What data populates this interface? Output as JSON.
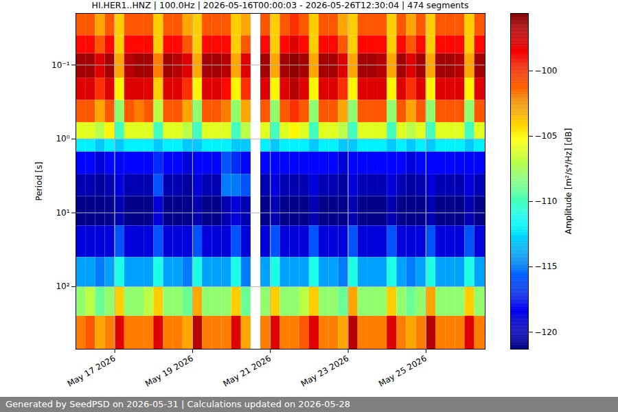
{
  "chart_data": {
    "type": "heatmap",
    "title": "HI.HER1..HNZ | 100.0Hz | 2026-05-16T00:00:03 - 2026-05-26T12:30:04 | 474 segments",
    "footer": "Generated by SeedPSD on 2026-05-31 | Calculations updated on 2026-05-28",
    "ylabel": "Period [s]",
    "log": "y",
    "grid": true,
    "xlim": [
      "2026-05-16T00:00",
      "2026-05-26T12:30"
    ],
    "xticks": [
      {
        "value": "2026-05-17",
        "label": "May 17 2026"
      },
      {
        "value": "2026-05-19",
        "label": "May 19 2026"
      },
      {
        "value": "2026-05-21",
        "label": "May 21 2026"
      },
      {
        "value": "2026-05-23",
        "label": "May 23 2026"
      },
      {
        "value": "2026-05-25",
        "label": "May 25 2026"
      }
    ],
    "ylim": [
      0.02,
      700
    ],
    "yticks": [
      {
        "value": 0.1,
        "label": "10⁻¹"
      },
      {
        "value": 1,
        "label": "10⁰"
      },
      {
        "value": 10,
        "label": "10¹"
      },
      {
        "value": 100,
        "label": "10²"
      }
    ],
    "x": [
      "2026-05-16T00:00",
      "2026-05-16T06:00",
      "2026-05-16T12:00",
      "2026-05-16T18:00",
      "2026-05-17T00:00",
      "2026-05-17T06:00",
      "2026-05-17T12:00",
      "2026-05-17T18:00",
      "2026-05-18T00:00",
      "2026-05-18T06:00",
      "2026-05-18T12:00",
      "2026-05-18T18:00",
      "2026-05-19T00:00",
      "2026-05-19T06:00",
      "2026-05-19T12:00",
      "2026-05-19T18:00",
      "2026-05-20T00:00",
      "2026-05-20T06:00",
      "2026-05-20T12:00",
      "2026-05-20T18:00",
      "2026-05-21T00:00",
      "2026-05-21T06:00",
      "2026-05-21T12:00",
      "2026-05-21T18:00",
      "2026-05-22T00:00",
      "2026-05-22T06:00",
      "2026-05-22T12:00",
      "2026-05-22T18:00",
      "2026-05-23T00:00",
      "2026-05-23T06:00",
      "2026-05-23T12:00",
      "2026-05-23T18:00",
      "2026-05-24T00:00",
      "2026-05-24T06:00",
      "2026-05-24T12:00",
      "2026-05-24T18:00",
      "2026-05-25T00:00",
      "2026-05-25T06:00",
      "2026-05-25T12:00",
      "2026-05-25T18:00",
      "2026-05-26T00:00",
      "2026-05-26T06:00",
      "2026-05-26T12:30"
    ],
    "y_edges": [
      0.02,
      0.04,
      0.07,
      0.15,
      0.3,
      0.6,
      1.0,
      1.5,
      3,
      6,
      15,
      40,
      100,
      250,
      700
    ],
    "values": [
      [
        -101,
        -99,
        -96.5,
        -98,
        -101,
        -106,
        -112,
        -118,
        -120,
        -121,
        -119,
        -114,
        -108,
        -102
      ],
      [
        -101,
        -99,
        -96.5,
        -98,
        -101,
        -106,
        -112,
        -118,
        -120,
        -121,
        -119,
        -114,
        -107,
        -101
      ],
      [
        -103,
        -101,
        -98,
        -100,
        -103,
        -107,
        -113,
        -119,
        -120.5,
        -121,
        -119,
        -115,
        -109,
        -103
      ],
      [
        -101,
        -99,
        -96.5,
        -98,
        -101,
        -105,
        -112,
        -118,
        -120,
        -121,
        -119,
        -114,
        -108,
        -102
      ],
      [
        -104,
        -104,
        -103,
        -105,
        -108,
        -110,
        -113,
        -118,
        -119,
        -120,
        -116,
        -111,
        -104,
        -98
      ],
      [
        -101,
        -99,
        -97,
        -98,
        -101,
        -106,
        -112,
        -118,
        -120,
        -121,
        -119,
        -114,
        -108,
        -102
      ],
      [
        -101,
        -99,
        -96.5,
        -98,
        -102,
        -106,
        -112,
        -118,
        -120,
        -121,
        -119,
        -114,
        -108,
        -102
      ],
      [
        -101,
        -99,
        -96.5,
        -98,
        -101,
        -106,
        -112,
        -118,
        -120,
        -121,
        -119,
        -114,
        -107,
        -102
      ],
      [
        -104,
        -104,
        -102,
        -104,
        -107,
        -110,
        -113,
        -117,
        -116,
        -119,
        -116,
        -111,
        -104,
        -98
      ],
      [
        -101,
        -99,
        -96.5,
        -98,
        -101,
        -106,
        -112,
        -118,
        -120,
        -121,
        -119,
        -114,
        -108,
        -102
      ],
      [
        -101,
        -99,
        -97,
        -98,
        -101,
        -106,
        -112,
        -118,
        -120,
        -121,
        -119,
        -114,
        -108,
        -102
      ],
      [
        -103,
        -101,
        -98,
        -100,
        -103,
        -107,
        -113,
        -119,
        -120.5,
        -121,
        -119,
        -115,
        -109,
        -103
      ],
      [
        -104,
        -104,
        -103,
        -105,
        -108,
        -110,
        -113,
        -118,
        -119,
        -120,
        -116,
        -111,
        -103,
        -97
      ],
      [
        -101,
        -99,
        -96.5,
        -98,
        -101,
        -106,
        -112,
        -118,
        -120,
        -121,
        -119,
        -114,
        -108,
        -102
      ],
      [
        -101,
        -99,
        -96.5,
        -98,
        -101,
        -106,
        -112,
        -118,
        -120,
        -121,
        -119,
        -114,
        -108,
        -102
      ],
      [
        -101,
        -99,
        -97,
        -99,
        -102,
        -106,
        -112,
        -116,
        -115,
        -120,
        -119,
        -114,
        -108,
        -102
      ],
      [
        -104,
        -104,
        -103,
        -105,
        -108,
        -110,
        -113,
        -117,
        -115,
        -119,
        -116,
        -111,
        -104,
        -98
      ],
      [
        -103,
        -101,
        -98,
        -100,
        -103,
        -107,
        -113,
        -118,
        -116,
        -120,
        -119,
        -115,
        -109,
        -103
      ],
      [
        null,
        null,
        null,
        null,
        null,
        null,
        null,
        null,
        null,
        null,
        null,
        null,
        null,
        null
      ],
      [
        -101,
        -99,
        -96.5,
        -98,
        -101,
        -106,
        -112,
        -118,
        -120,
        -121,
        -119,
        -114,
        -108,
        -102
      ],
      [
        -104,
        -104,
        -103,
        -105,
        -108,
        -110,
        -113,
        -118,
        -119,
        -120,
        -116,
        -111,
        -104,
        -98
      ],
      [
        -101,
        -99,
        -96.5,
        -98,
        -101,
        -106,
        -112,
        -118,
        -120,
        -121,
        -119,
        -114,
        -108,
        -102
      ],
      [
        -100,
        -98,
        -96,
        -97,
        -100,
        -105,
        -112,
        -118,
        -120,
        -121,
        -119,
        -114,
        -108,
        -102
      ],
      [
        -101,
        -99,
        -96.5,
        -98,
        -101,
        -106,
        -112,
        -118,
        -120,
        -121,
        -119,
        -114,
        -107,
        -101
      ],
      [
        -104,
        -104,
        -103,
        -105,
        -108,
        -110,
        -113,
        -118,
        -119,
        -120,
        -116,
        -111,
        -104,
        -98
      ],
      [
        -101,
        -99,
        -96.5,
        -98,
        -101,
        -106,
        -112,
        -118,
        -120,
        -121,
        -119,
        -114,
        -108,
        -102
      ],
      [
        -101,
        -99,
        -96.5,
        -98,
        -101,
        -106,
        -112,
        -118,
        -120,
        -121,
        -119,
        -114,
        -108,
        -102
      ],
      [
        -103,
        -101,
        -98,
        -100,
        -103,
        -107,
        -113,
        -119,
        -120.5,
        -121,
        -119,
        -115,
        -109,
        -103
      ],
      [
        -104,
        -104,
        -103,
        -105,
        -108,
        -110,
        -113,
        -118,
        -119,
        -120,
        -116,
        -111,
        -103,
        -97
      ],
      [
        -101,
        -99,
        -96.5,
        -98,
        -101,
        -106,
        -112,
        -118,
        -120,
        -121,
        -119,
        -114,
        -108,
        -102
      ],
      [
        -101,
        -99,
        -96.5,
        -98,
        -101,
        -106,
        -112,
        -118,
        -120,
        -121,
        -119,
        -114,
        -108,
        -102
      ],
      [
        -101,
        -99,
        -97,
        -98,
        -101,
        -106,
        -112,
        -118,
        -120,
        -121,
        -119,
        -114,
        -108,
        -102
      ],
      [
        -104,
        -104,
        -103,
        -105,
        -108,
        -110,
        -113,
        -118,
        -119,
        -120,
        -116,
        -111,
        -104,
        -98
      ],
      [
        -101,
        -99,
        -96.5,
        -98,
        -101,
        -106,
        -112,
        -118,
        -120,
        -121,
        -119,
        -114,
        -108,
        -102
      ],
      [
        -103,
        -101,
        -98,
        -100,
        -103,
        -107,
        -113,
        -119,
        -120.5,
        -121,
        -119,
        -115,
        -109,
        -103
      ],
      [
        -101,
        -99,
        -96.5,
        -98,
        -101,
        -106,
        -112,
        -118,
        -120,
        -121,
        -119,
        -114,
        -108,
        -102
      ],
      [
        -104,
        -104,
        -103,
        -105,
        -108,
        -110,
        -113,
        -118,
        -119,
        -120,
        -116,
        -111,
        -103,
        -97
      ],
      [
        -101,
        -99,
        -96.5,
        -98,
        -101,
        -106,
        -112,
        -118,
        -120,
        -121,
        -119,
        -114,
        -108,
        -102
      ],
      [
        -101,
        -99,
        -96.5,
        -98,
        -101,
        -106,
        -112,
        -118,
        -120,
        -121,
        -119,
        -114,
        -108,
        -102
      ],
      [
        -101,
        -99,
        -97,
        -98,
        -101,
        -106,
        -112,
        -118,
        -120,
        -121,
        -119,
        -114,
        -108,
        -102
      ],
      [
        -104,
        -104,
        -103,
        -105,
        -108,
        -110,
        -113,
        -118,
        -119,
        -120,
        -116,
        -111,
        -104,
        -98
      ],
      [
        -101,
        -99,
        -96.5,
        -98,
        -101,
        -106,
        -112,
        -118,
        -120,
        -121,
        -119,
        -114,
        -108,
        -102
      ]
    ],
    "colorbar": {
      "label": "Amplitude [m²/s⁴/Hz] [dB]",
      "range": [
        -121.3,
        -95.6
      ],
      "ticks": [
        {
          "value": -120,
          "label": "−120"
        },
        {
          "value": -115,
          "label": "−115"
        },
        {
          "value": -110,
          "label": "−110"
        },
        {
          "value": -105,
          "label": "−105"
        },
        {
          "value": -100,
          "label": "−100"
        }
      ]
    }
  }
}
